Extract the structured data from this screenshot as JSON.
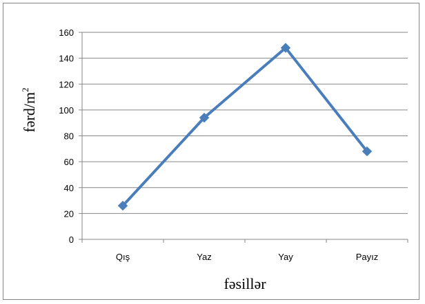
{
  "chart_data": {
    "type": "line",
    "title": "",
    "xlabel": "fəsillər",
    "ylabel": "fərd/m",
    "ylabel_superscript": "2",
    "categories": [
      "Qış",
      "Yaz",
      "Yay",
      "Payız"
    ],
    "series": [
      {
        "values": [
          26,
          94,
          148,
          68
        ],
        "color": "#4a7ebb",
        "marker": "diamond"
      }
    ],
    "ylim": [
      0,
      160
    ],
    "yticks": [
      0,
      20,
      40,
      60,
      80,
      100,
      120,
      140,
      160
    ],
    "grid": true,
    "legend": "none"
  }
}
